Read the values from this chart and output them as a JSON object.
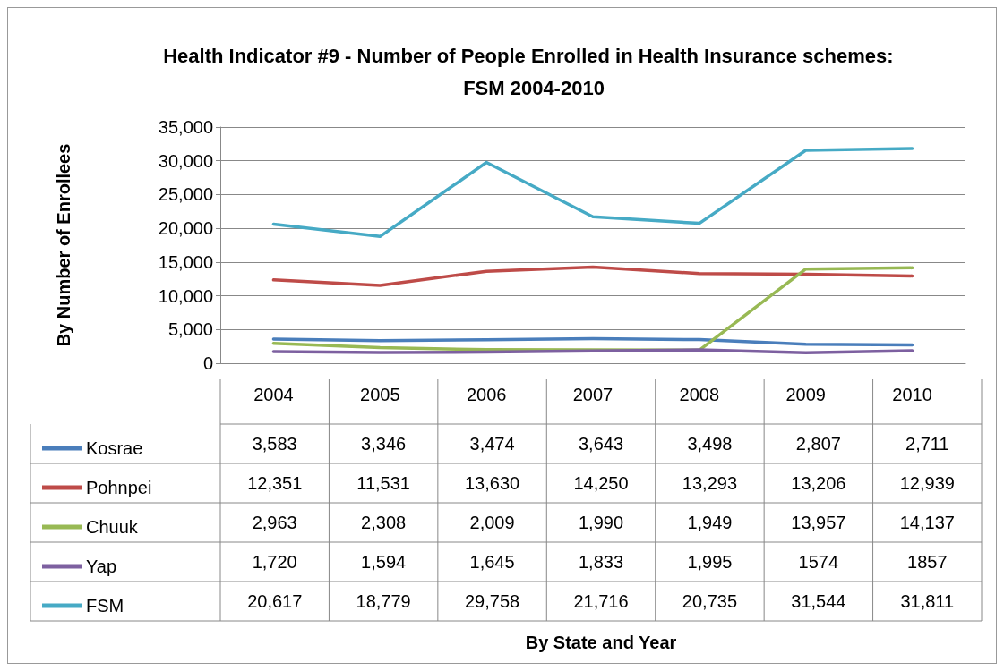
{
  "chart_data": {
    "type": "line",
    "title": "Health Indicator #9 - Number of People Enrolled in Health Insurance schemes:  FSM 2004-2010",
    "annotations": [
      "By State and Year"
    ],
    "ylabel": "By Number of Enrollees",
    "categories": [
      "2004",
      "2005",
      "2006",
      "2007",
      "2008",
      "2009",
      "2010"
    ],
    "series": [
      {
        "name": "Kosrae",
        "color": "#4a7ebb",
        "values": [
          3583,
          3346,
          3474,
          3643,
          3498,
          2807,
          2711
        ],
        "value_labels": [
          "3,583",
          "3,346",
          "3,474",
          "3,643",
          "3,498",
          "2,807",
          "2,711"
        ]
      },
      {
        "name": "Pohnpei",
        "color": "#be4b48",
        "values": [
          12351,
          11531,
          13630,
          14250,
          13293,
          13206,
          12939
        ],
        "value_labels": [
          "12,351",
          "11,531",
          "13,630",
          "14,250",
          "13,293",
          "13,206",
          "12,939"
        ]
      },
      {
        "name": "Chuuk",
        "color": "#98b954",
        "values": [
          2963,
          2308,
          2009,
          1990,
          1949,
          13957,
          14137
        ],
        "value_labels": [
          "2,963",
          "2,308",
          "2,009",
          "1,990",
          "1,949",
          "13,957",
          "14,137"
        ]
      },
      {
        "name": "Yap",
        "color": "#7d60a0",
        "values": [
          1720,
          1594,
          1645,
          1833,
          1995,
          1574,
          1857
        ],
        "value_labels": [
          "1,720",
          "1,594",
          "1,645",
          "1,833",
          "1,995",
          "1574",
          "1857"
        ]
      },
      {
        "name": "FSM",
        "color": "#46aac5",
        "values": [
          20617,
          18779,
          29758,
          21716,
          20735,
          31544,
          31811
        ],
        "value_labels": [
          "20,617",
          "18,779",
          "29,758",
          "21,716",
          "20,735",
          "31,544",
          "31,811"
        ]
      }
    ],
    "ylim": [
      0,
      35000
    ],
    "yticks": [
      0,
      {
        "value": 5000,
        "label": "5,000"
      },
      {
        "value": 10000,
        "label": "10,000"
      },
      {
        "value": 15000,
        "label": "15,000"
      },
      {
        "value": 20000,
        "label": "20,000"
      },
      {
        "value": 25000,
        "label": "25,000"
      },
      {
        "value": 30000,
        "label": "30,000"
      },
      {
        "value": 35000,
        "label": "35,000"
      }
    ],
    "grid": "y",
    "legend": "bottom",
    "marker": "none",
    "line_style": "solid"
  }
}
